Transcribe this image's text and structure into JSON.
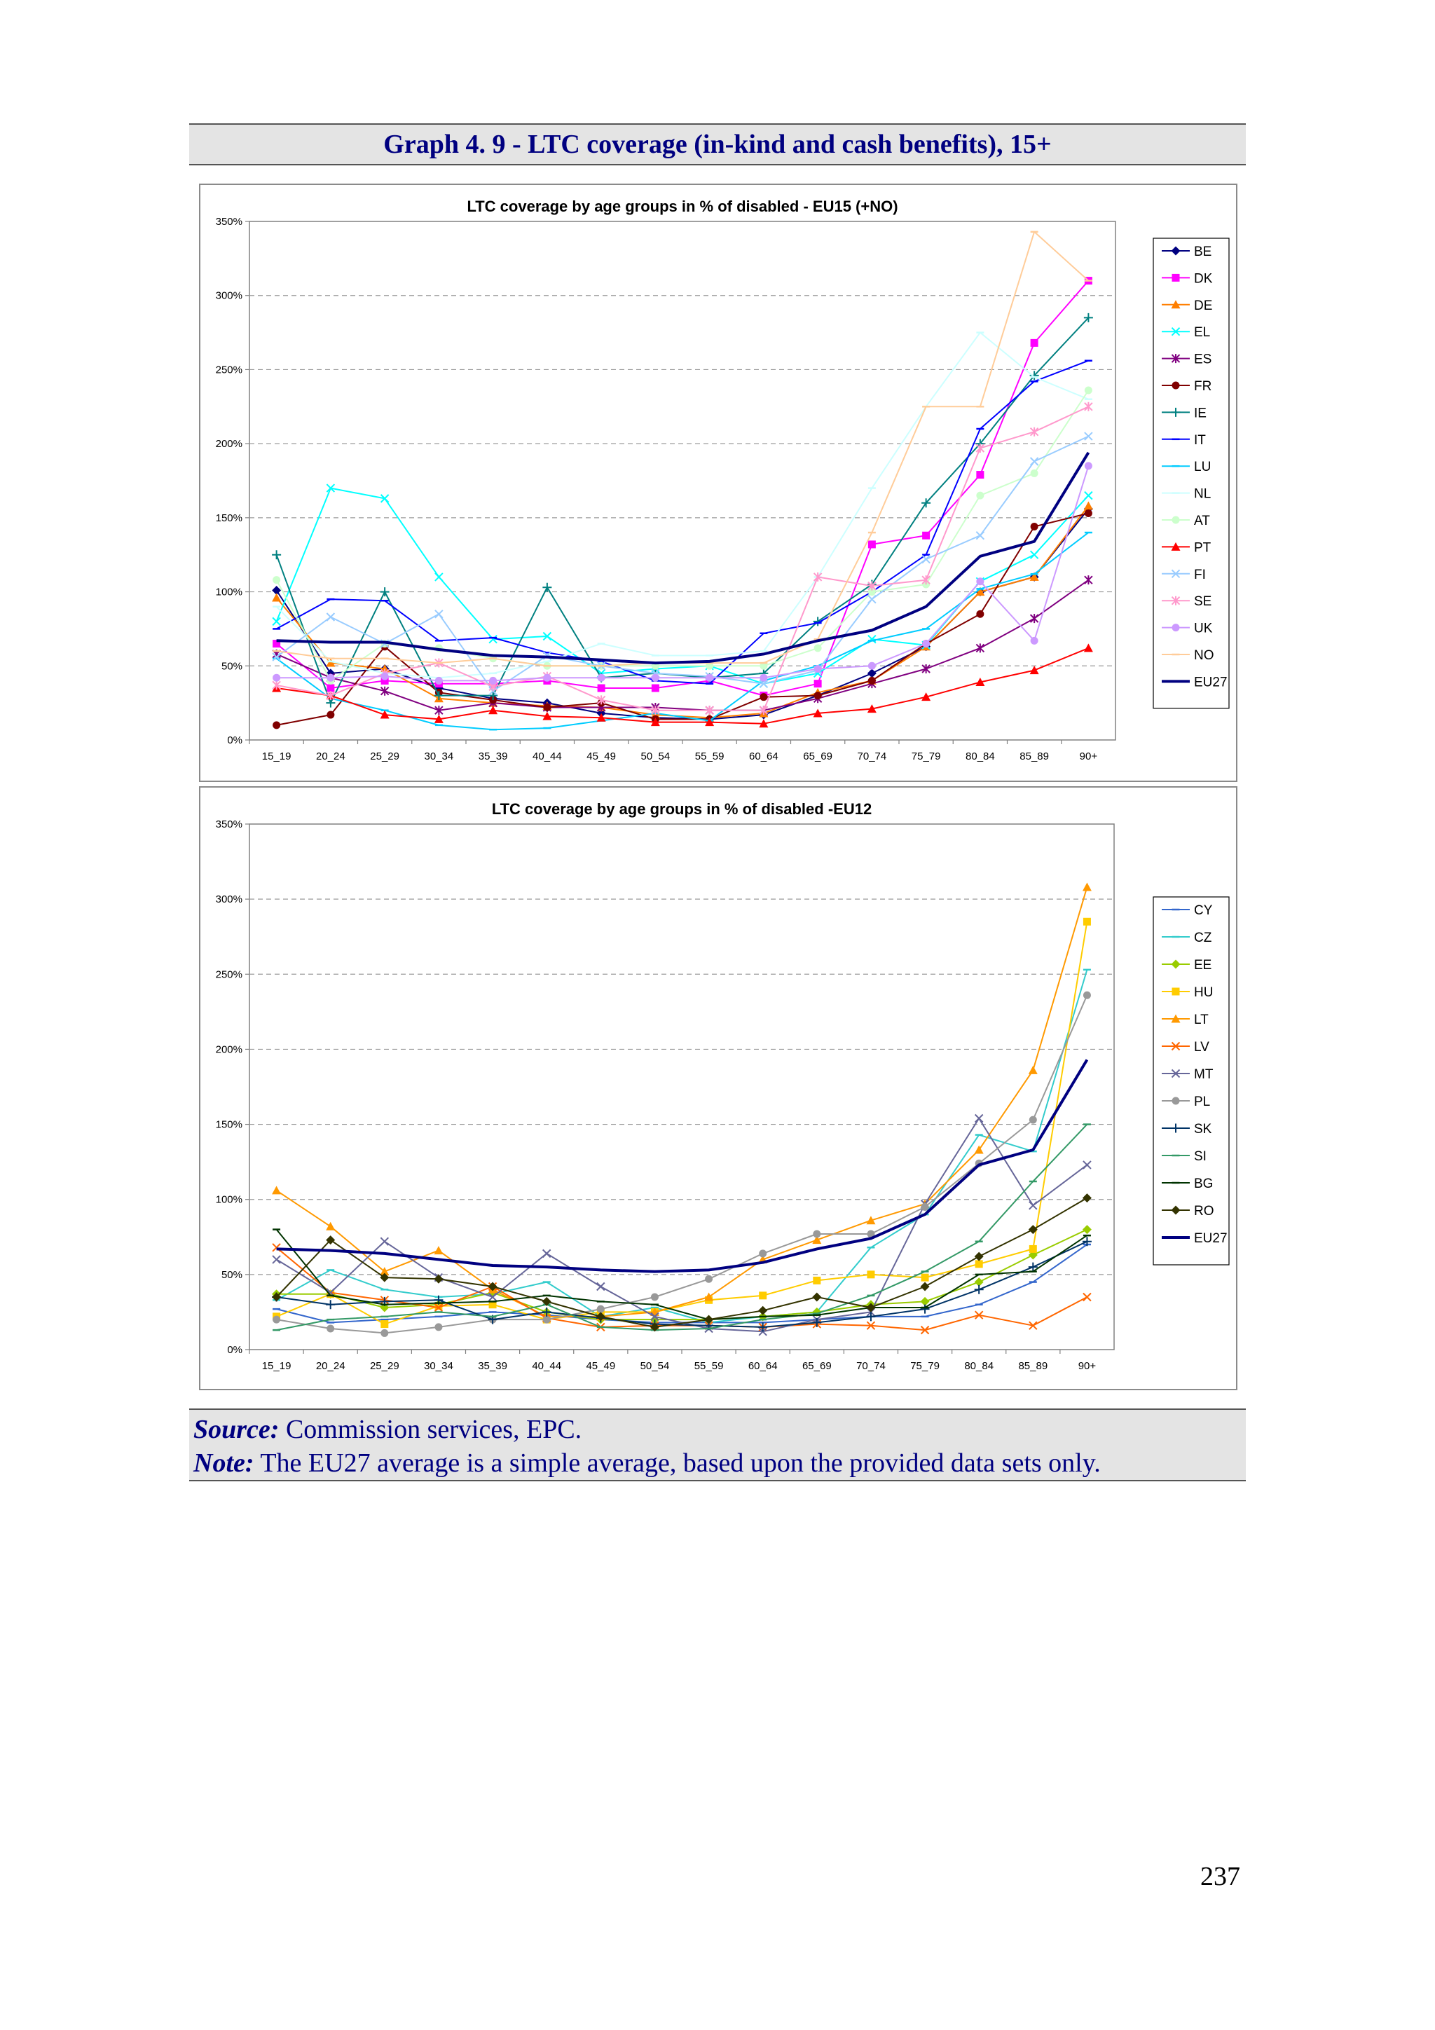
{
  "header": {
    "title": "Graph 4. 9 - LTC coverage (in-kind and cash benefits), 15+"
  },
  "footer": {
    "source_label": "Source:",
    "source_text": " Commission services, EPC.",
    "note_label": "Note:",
    "note_text": " The EU27 average is a simple average, based upon the provided data sets only."
  },
  "page_number": "237",
  "chart_data": [
    {
      "type": "line",
      "title": "LTC coverage by age groups in % of disabled - EU15 (+NO)",
      "xlabel": "",
      "ylabel": "",
      "ylim": [
        0,
        350
      ],
      "yticks": [
        "0%",
        "50%",
        "100%",
        "150%",
        "200%",
        "250%",
        "300%",
        "350%"
      ],
      "grid": "horizontal-dashed",
      "legend": "right",
      "categories": [
        "15_19",
        "20_24",
        "25_29",
        "30_34",
        "35_39",
        "40_44",
        "45_49",
        "50_54",
        "55_59",
        "60_64",
        "65_69",
        "70_74",
        "75_79",
        "80_84",
        "85_89",
        "90+"
      ],
      "series": [
        {
          "name": "BE",
          "color": "#000080",
          "marker": "diamond",
          "values": [
            101,
            45,
            48,
            35,
            28,
            25,
            18,
            15,
            14,
            17,
            30,
            45,
            63,
            100,
            110,
            156
          ]
        },
        {
          "name": "DK",
          "color": "#ff00ff",
          "marker": "square",
          "values": [
            65,
            35,
            40,
            38,
            38,
            40,
            35,
            35,
            40,
            30,
            38,
            132,
            138,
            179,
            268,
            310
          ]
        },
        {
          "name": "DE",
          "color": "#ff7f00",
          "marker": "triangle",
          "values": [
            96,
            52,
            48,
            28,
            25,
            23,
            22,
            17,
            15,
            18,
            32,
            40,
            63,
            100,
            110,
            158
          ]
        },
        {
          "name": "EL",
          "color": "#00ffff",
          "marker": "x",
          "values": [
            80,
            170,
            163,
            110,
            68,
            70,
            45,
            48,
            50,
            38,
            45,
            68,
            64,
            107,
            125,
            165
          ]
        },
        {
          "name": "ES",
          "color": "#800080",
          "marker": "star",
          "values": [
            58,
            42,
            33,
            20,
            25,
            22,
            22,
            22,
            20,
            20,
            28,
            38,
            48,
            62,
            82,
            108
          ]
        },
        {
          "name": "FR",
          "color": "#800000",
          "marker": "circle",
          "values": [
            10,
            17,
            63,
            32,
            27,
            22,
            25,
            14,
            14,
            29,
            30,
            40,
            65,
            85,
            144,
            153
          ]
        },
        {
          "name": "IE",
          "color": "#008080",
          "marker": "plus",
          "values": [
            125,
            25,
            100,
            30,
            30,
            103,
            42,
            45,
            42,
            45,
            80,
            105,
            160,
            200,
            246,
            285
          ]
        },
        {
          "name": "IT",
          "color": "#0000ff",
          "marker": "dash",
          "values": [
            75,
            95,
            94,
            67,
            69,
            59,
            53,
            40,
            38,
            72,
            79,
            100,
            125,
            210,
            242,
            256
          ]
        },
        {
          "name": "LU",
          "color": "#00ccff",
          "marker": "dash",
          "values": [
            55,
            28,
            20,
            10,
            7,
            8,
            13,
            18,
            13,
            40,
            50,
            67,
            75,
            102,
            112,
            140
          ]
        },
        {
          "name": "NL",
          "color": "#ccffff",
          "marker": "dash",
          "values": [
            90,
            53,
            45,
            42,
            45,
            53,
            65,
            57,
            57,
            60,
            110,
            170,
            225,
            275,
            245,
            230
          ]
        },
        {
          "name": "AT",
          "color": "#ccffcc",
          "marker": "circle",
          "values": [
            108,
            40,
            65,
            62,
            55,
            50,
            50,
            50,
            50,
            50,
            62,
            100,
            105,
            165,
            180,
            236
          ]
        },
        {
          "name": "PT",
          "color": "#ff0000",
          "marker": "triangle",
          "values": [
            35,
            30,
            17,
            14,
            20,
            16,
            15,
            12,
            12,
            11,
            18,
            21,
            29,
            39,
            47,
            62
          ]
        },
        {
          "name": "FI",
          "color": "#99ccff",
          "marker": "x",
          "values": [
            56,
            83,
            65,
            85,
            33,
            57,
            50,
            45,
            43,
            38,
            47,
            95,
            122,
            138,
            188,
            205
          ]
        },
        {
          "name": "SE",
          "color": "#ff99cc",
          "marker": "star",
          "values": [
            37,
            30,
            45,
            52,
            36,
            43,
            27,
            20,
            20,
            20,
            110,
            104,
            108,
            197,
            208,
            225
          ]
        },
        {
          "name": "UK",
          "color": "#cc99ff",
          "marker": "circle",
          "values": [
            42,
            42,
            43,
            40,
            40,
            42,
            42,
            42,
            42,
            42,
            48,
            50,
            65,
            107,
            67,
            185
          ]
        },
        {
          "name": "NO",
          "color": "#ffcc99",
          "marker": "dash",
          "values": [
            60,
            55,
            55,
            52,
            55,
            50,
            50,
            52,
            52,
            52,
            68,
            140,
            225,
            225,
            343,
            310
          ]
        },
        {
          "name": "EU27",
          "color": "#000080",
          "marker": "thick",
          "values": [
            67,
            66,
            66,
            61,
            57,
            56,
            54,
            52,
            53,
            58,
            67,
            74,
            90,
            124,
            134,
            194
          ]
        }
      ]
    },
    {
      "type": "line",
      "title": "LTC coverage by age groups in % of disabled -EU12",
      "xlabel": "",
      "ylabel": "",
      "ylim": [
        0,
        350
      ],
      "yticks": [
        "0%",
        "50%",
        "100%",
        "150%",
        "200%",
        "250%",
        "300%",
        "350%"
      ],
      "grid": "horizontal-dashed",
      "legend": "right",
      "categories": [
        "15_19",
        "20_24",
        "25_29",
        "30_34",
        "35_39",
        "40_44",
        "45_49",
        "50_54",
        "55_59",
        "60_64",
        "65_69",
        "70_74",
        "75_79",
        "80_84",
        "85_89",
        "90+"
      ],
      "series": [
        {
          "name": "CY",
          "color": "#3366cc",
          "marker": "dash",
          "values": [
            27,
            18,
            20,
            22,
            25,
            23,
            20,
            18,
            18,
            18,
            20,
            22,
            22,
            30,
            45,
            70
          ]
        },
        {
          "name": "CZ",
          "color": "#33cccc",
          "marker": "dash",
          "values": [
            33,
            53,
            40,
            35,
            37,
            45,
            22,
            28,
            18,
            22,
            25,
            68,
            90,
            143,
            132,
            253
          ]
        },
        {
          "name": "EE",
          "color": "#99cc00",
          "marker": "diamond",
          "values": [
            37,
            37,
            28,
            30,
            38,
            25,
            20,
            20,
            20,
            22,
            25,
            30,
            32,
            45,
            63,
            80
          ]
        },
        {
          "name": "HU",
          "color": "#ffcc00",
          "marker": "square",
          "values": [
            22,
            37,
            17,
            29,
            30,
            20,
            25,
            25,
            33,
            36,
            46,
            50,
            48,
            57,
            67,
            285
          ]
        },
        {
          "name": "LT",
          "color": "#ff9900",
          "marker": "triangle",
          "values": [
            106,
            82,
            52,
            66,
            40,
            22,
            22,
            25,
            35,
            60,
            73,
            86,
            97,
            133,
            186,
            308
          ]
        },
        {
          "name": "LV",
          "color": "#ff6600",
          "marker": "x",
          "values": [
            68,
            38,
            33,
            28,
            42,
            21,
            15,
            16,
            16,
            15,
            17,
            16,
            13,
            23,
            16,
            35
          ]
        },
        {
          "name": "MT",
          "color": "#666699",
          "marker": "x",
          "values": [
            60,
            38,
            72,
            48,
            35,
            64,
            42,
            22,
            14,
            12,
            20,
            25,
            97,
            154,
            96,
            123
          ]
        },
        {
          "name": "PL",
          "color": "#999999",
          "marker": "circle",
          "values": [
            20,
            14,
            11,
            15,
            20,
            20,
            27,
            35,
            47,
            64,
            77,
            77,
            95,
            124,
            153,
            236
          ]
        },
        {
          "name": "SK",
          "color": "#003366",
          "marker": "plus",
          "values": [
            35,
            30,
            32,
            33,
            20,
            25,
            21,
            17,
            16,
            15,
            18,
            22,
            27,
            40,
            55,
            72
          ]
        },
        {
          "name": "SI",
          "color": "#339966",
          "marker": "dash",
          "values": [
            13,
            20,
            22,
            25,
            22,
            30,
            15,
            13,
            14,
            20,
            24,
            36,
            52,
            72,
            112,
            150
          ]
        },
        {
          "name": "BG",
          "color": "#003300",
          "marker": "dash",
          "values": [
            80,
            36,
            30,
            31,
            32,
            36,
            32,
            30,
            20,
            22,
            23,
            28,
            28,
            50,
            52,
            76
          ]
        },
        {
          "name": "RO",
          "color": "#333300",
          "marker": "diamond",
          "values": [
            35,
            73,
            48,
            47,
            42,
            32,
            22,
            15,
            20,
            26,
            35,
            28,
            42,
            62,
            80,
            101
          ]
        },
        {
          "name": "EU27",
          "color": "#000080",
          "marker": "thick",
          "values": [
            67,
            66,
            64,
            60,
            56,
            55,
            53,
            52,
            53,
            58,
            67,
            74,
            90,
            123,
            133,
            193
          ]
        }
      ]
    }
  ]
}
